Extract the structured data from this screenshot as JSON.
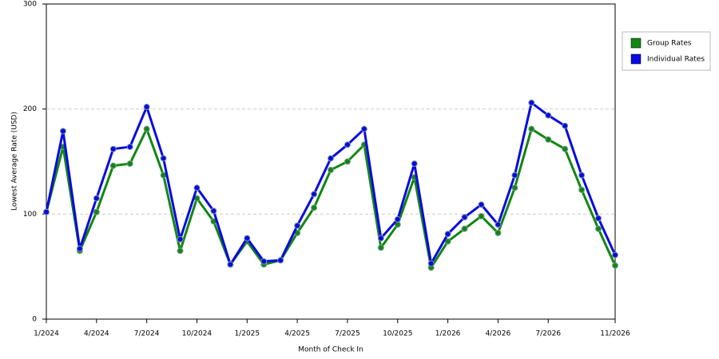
{
  "chart_data": {
    "type": "line",
    "x_label": "Month of Check In",
    "y_label": "Lowest Average Rate (USD)",
    "categories": [
      "1/2024",
      null,
      null,
      "4/2024",
      null,
      null,
      "7/2024",
      null,
      null,
      "10/2024",
      null,
      null,
      "1/2025",
      null,
      null,
      "4/2025",
      null,
      null,
      "7/2025",
      null,
      null,
      "10/2025",
      null,
      null,
      "1/2026",
      null,
      null,
      "4/2026",
      null,
      null,
      "7/2026",
      null,
      null,
      null,
      "11/2026"
    ],
    "series": [
      {
        "name": "Group Rates",
        "color": "#138613",
        "values": [
          102,
          164,
          65,
          102,
          146,
          148,
          181,
          137,
          65,
          115,
          93,
          52,
          74,
          52,
          56,
          82,
          106,
          142,
          150,
          166,
          68,
          90,
          135,
          49,
          74,
          86,
          98,
          82,
          125,
          181,
          171,
          162,
          123,
          86,
          51
        ]
      },
      {
        "name": "Individual Rates",
        "color": "#0a0ae0",
        "values": [
          102,
          179,
          67,
          115,
          162,
          164,
          202,
          153,
          76,
          125,
          103,
          52,
          77,
          55,
          56,
          89,
          119,
          153,
          166,
          181,
          77,
          95,
          148,
          53,
          81,
          97,
          109,
          90,
          137,
          206,
          194,
          184,
          137,
          96,
          61
        ]
      }
    ],
    "ylim": [
      0,
      300
    ],
    "yticks": [
      0,
      100,
      200,
      300
    ],
    "grid": true,
    "legend": "right"
  }
}
